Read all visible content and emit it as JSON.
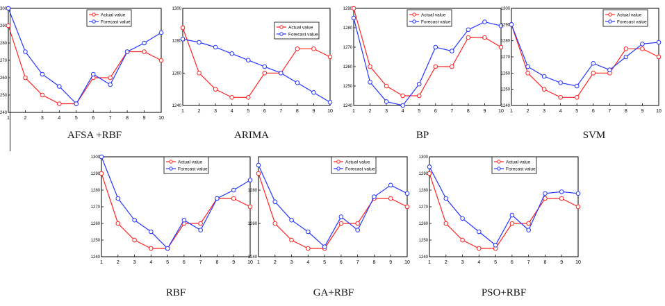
{
  "colors": {
    "actual": "#ff2222",
    "forecast": "#2233ff",
    "axis": "#000000",
    "background": "#ffffff"
  },
  "chart_data": [
    {
      "type": "line",
      "title": "AFSA +RBF",
      "x": [
        1,
        2,
        3,
        4,
        5,
        6,
        7,
        8,
        9,
        10
      ],
      "yticks": [
        "1240",
        "1250",
        "1260",
        "1270",
        "1280",
        "1290",
        "1300"
      ],
      "ylim": [
        1240,
        1300
      ],
      "series": [
        {
          "name": "Actual value",
          "values": [
            1290,
            1260,
            1250,
            1245,
            1245,
            1260,
            1260,
            1275,
            1275,
            1270
          ]
        },
        {
          "name": "Forecast value",
          "values": [
            1300,
            1275,
            1262,
            1255,
            1245,
            1262,
            1256,
            1275,
            1280,
            1286
          ]
        }
      ]
    },
    {
      "type": "line",
      "title": "ARIMA",
      "x": [
        1,
        2,
        3,
        4,
        5,
        6,
        7,
        8,
        9,
        10
      ],
      "yticks": [
        "1240",
        "1260",
        "1280",
        "1300"
      ],
      "ylim": [
        1240,
        1300
      ],
      "series": [
        {
          "name": "Actual value",
          "values": [
            1288,
            1260,
            1250,
            1245,
            1245,
            1260,
            1260,
            1275,
            1275,
            1270
          ]
        },
        {
          "name": "Forecast value",
          "values": [
            1281,
            1279,
            1276,
            1272,
            1268,
            1264,
            1260,
            1254,
            1248,
            1242
          ]
        }
      ]
    },
    {
      "type": "line",
      "title": "BP",
      "x": [
        1,
        2,
        3,
        4,
        5,
        6,
        7,
        8,
        9,
        10
      ],
      "yticks": [
        "1240",
        "1250",
        "1260",
        "1270",
        "1280",
        "1290"
      ],
      "ylim": [
        1240,
        1290
      ],
      "series": [
        {
          "name": "Actual value",
          "values": [
            1290,
            1260,
            1250,
            1245,
            1245,
            1260,
            1260,
            1275,
            1275,
            1270
          ]
        },
        {
          "name": "Forecast value",
          "values": [
            1285,
            1252,
            1242,
            1240,
            1251,
            1270,
            1268,
            1279,
            1283,
            1281
          ]
        }
      ]
    },
    {
      "type": "line",
      "title": "SVM",
      "x": [
        1,
        2,
        3,
        4,
        5,
        6,
        7,
        8,
        9,
        10
      ],
      "yticks": [
        "1240",
        "1250",
        "1260",
        "1270",
        "1280",
        "1290",
        "1300"
      ],
      "ylim": [
        1240,
        1300
      ],
      "series": [
        {
          "name": "Actual value",
          "values": [
            1290,
            1260,
            1250,
            1245,
            1245,
            1260,
            1260,
            1275,
            1275,
            1270
          ]
        },
        {
          "name": "Forecast value",
          "values": [
            1290,
            1264,
            1258,
            1254,
            1252,
            1266,
            1262,
            1270,
            1278,
            1279
          ]
        }
      ]
    },
    {
      "type": "line",
      "title": "RBF",
      "x": [
        1,
        2,
        3,
        4,
        5,
        6,
        7,
        8,
        9,
        10
      ],
      "yticks": [
        "1240",
        "1250",
        "1260",
        "1270",
        "1280",
        "1290",
        "1300"
      ],
      "ylim": [
        1240,
        1300
      ],
      "series": [
        {
          "name": "Actual value",
          "values": [
            1290,
            1260,
            1250,
            1245,
            1245,
            1260,
            1260,
            1275,
            1275,
            1270
          ]
        },
        {
          "name": "Forecast value",
          "values": [
            1300,
            1275,
            1262,
            1255,
            1245,
            1262,
            1256,
            1275,
            1280,
            1286
          ]
        }
      ]
    },
    {
      "type": "line",
      "title": "GA+RBF",
      "x": [
        1,
        2,
        3,
        4,
        5,
        6,
        7,
        8,
        9,
        10
      ],
      "yticks": [
        "1240",
        "1260",
        "1280"
      ],
      "ylim": [
        1240,
        1300
      ],
      "series": [
        {
          "name": "Actual value",
          "values": [
            1290,
            1260,
            1250,
            1245,
            1245,
            1260,
            1260,
            1275,
            1275,
            1270
          ]
        },
        {
          "name": "Forecast value",
          "values": [
            1295,
            1273,
            1262,
            1255,
            1246,
            1264,
            1256,
            1276,
            1283,
            1278
          ]
        }
      ]
    },
    {
      "type": "line",
      "title": "PSO+RBF",
      "x": [
        1,
        2,
        3,
        4,
        5,
        6,
        7,
        8,
        9,
        10
      ],
      "yticks": [
        "1240",
        "1250",
        "1260",
        "1270",
        "1280",
        "1290",
        "1300"
      ],
      "ylim": [
        1240,
        1300
      ],
      "series": [
        {
          "name": "Actual value",
          "values": [
            1290,
            1260,
            1250,
            1245,
            1245,
            1260,
            1260,
            1275,
            1275,
            1270
          ]
        },
        {
          "name": "Forecast value",
          "values": [
            1294,
            1275,
            1263,
            1255,
            1247,
            1265,
            1256,
            1278,
            1279,
            1278
          ]
        }
      ]
    }
  ]
}
